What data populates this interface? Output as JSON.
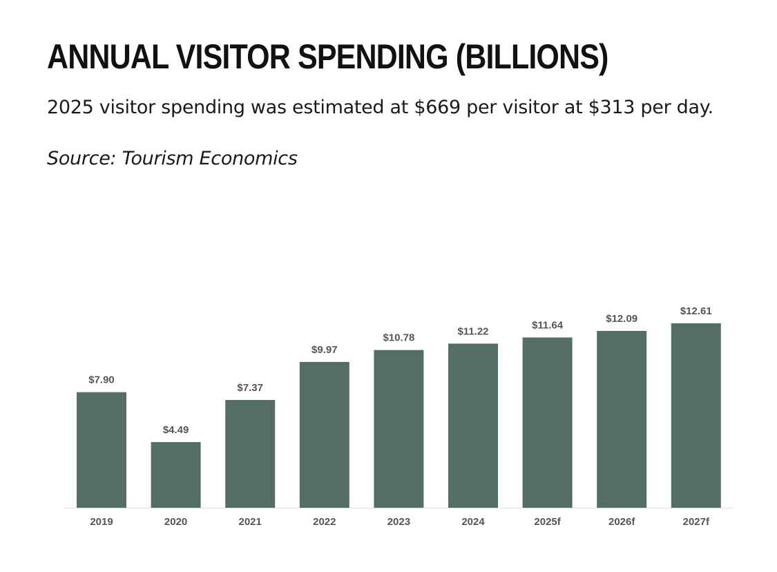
{
  "header": {
    "title": "ANNUAL VISITOR SPENDING (BILLIONS)",
    "subtitle": "2025 visitor spending was estimated at $669 per visitor at $313 per day.",
    "source": "Source: Tourism Economics"
  },
  "chart_data": {
    "type": "bar",
    "categories": [
      "2019",
      "2020",
      "2021",
      "2022",
      "2023",
      "2024",
      "2025f",
      "2026f",
      "2027f"
    ],
    "values": [
      7.9,
      4.49,
      7.37,
      9.97,
      10.78,
      11.22,
      11.64,
      12.09,
      12.61
    ],
    "data_labels": [
      "$7.90",
      "$4.49",
      "$7.37",
      "$9.97",
      "$10.78",
      "$11.22",
      "$11.64",
      "$12.09",
      "$12.61"
    ],
    "bar_color": "#546e65",
    "axis_color": "#dddddd",
    "label_color": "#555555",
    "grid": false,
    "ylim": [
      0,
      12.61
    ]
  }
}
